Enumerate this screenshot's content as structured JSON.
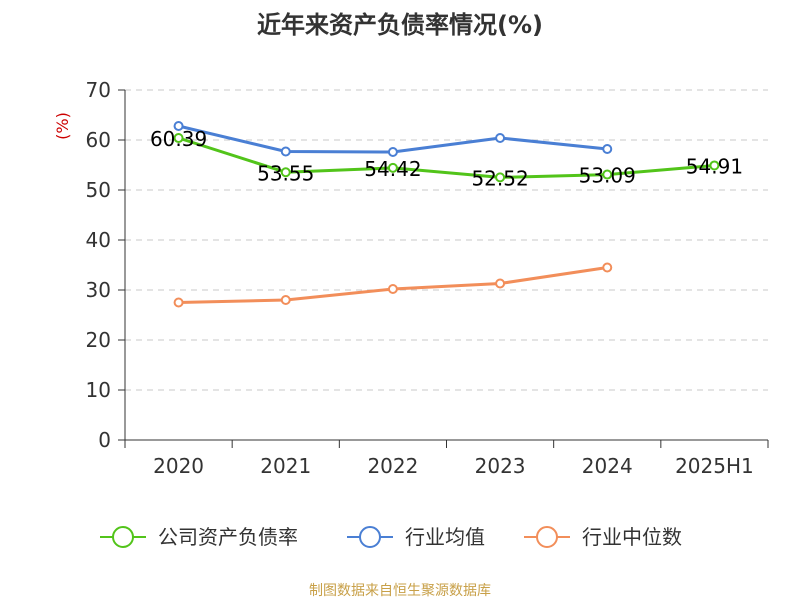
{
  "chart_data": {
    "type": "line",
    "title": "近年来资产负债率情况(%)",
    "ylabel": "(%)",
    "xlabel": "",
    "categories": [
      "2020",
      "2021",
      "2022",
      "2023",
      "2024",
      "2025H1"
    ],
    "ylim": [
      0,
      70
    ],
    "yticks": [
      0,
      10,
      20,
      30,
      40,
      50,
      60,
      70
    ],
    "grid": true,
    "legend_position": "bottom",
    "series": [
      {
        "name": "公司资产负债率",
        "color": "#52c41a",
        "values": [
          60.39,
          53.55,
          54.42,
          52.52,
          53.09,
          54.91
        ],
        "labels": [
          "60.39",
          "53.55",
          "54.42",
          "52.52",
          "53.09",
          "54.91"
        ]
      },
      {
        "name": "行业均值",
        "color": "#4a7fd4",
        "values": [
          62.8,
          57.7,
          57.6,
          60.4,
          58.2,
          null
        ]
      },
      {
        "name": "行业中位数",
        "color": "#f28e5a",
        "values": [
          27.5,
          28.0,
          30.2,
          31.3,
          34.5,
          null
        ]
      }
    ],
    "source": "制图数据来自恒生聚源数据库"
  }
}
